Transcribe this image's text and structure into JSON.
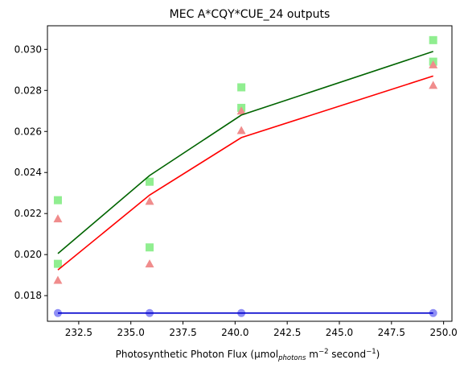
{
  "chart_data": {
    "type": "scatter",
    "title": "MEC A*CQY*CUE_24 outputs",
    "xlabel": {
      "prefix": "Photosynthetic Photon Flux (μmol",
      "sub": "photons",
      "mid1": " m",
      "sup1": "−2",
      "mid2": " second",
      "sup2": "−1",
      "suffix": ")"
    },
    "ylabel": "",
    "xlim": [
      231.0,
      250.4
    ],
    "ylim": [
      0.01675,
      0.03115
    ],
    "xticks": [
      232.5,
      235.0,
      237.5,
      240.0,
      242.5,
      245.0,
      247.5,
      250.0
    ],
    "xtick_labels": [
      "232.5",
      "235.0",
      "237.5",
      "240.0",
      "242.5",
      "245.0",
      "247.5",
      "250.0"
    ],
    "yticks": [
      0.018,
      0.02,
      0.022,
      0.024,
      0.026,
      0.028,
      0.03
    ],
    "ytick_labels": [
      "0.018",
      "0.020",
      "0.022",
      "0.024",
      "0.026",
      "0.028",
      "0.030"
    ],
    "grid": false,
    "legend": "none",
    "series": [
      {
        "kind": "scatter",
        "marker": "square",
        "color": "#90ee90",
        "points": [
          [
            231.5,
            0.02265
          ],
          [
            231.5,
            0.01955
          ],
          [
            235.9,
            0.02355
          ],
          [
            235.9,
            0.02035
          ],
          [
            240.3,
            0.02815
          ],
          [
            240.3,
            0.02715
          ],
          [
            249.5,
            0.03045
          ],
          [
            249.5,
            0.0294
          ]
        ]
      },
      {
        "kind": "scatter",
        "marker": "triangle",
        "color": "#f08c8c",
        "points": [
          [
            231.5,
            0.02175
          ],
          [
            231.5,
            0.01875
          ],
          [
            235.9,
            0.0226
          ],
          [
            235.9,
            0.01955
          ],
          [
            240.3,
            0.027
          ],
          [
            240.3,
            0.02605
          ],
          [
            249.5,
            0.02925
          ],
          [
            249.5,
            0.02825
          ]
        ]
      },
      {
        "kind": "scatter",
        "marker": "circle",
        "color": "#8f8ff5",
        "points": [
          [
            231.5,
            0.01715
          ],
          [
            235.9,
            0.01715
          ],
          [
            240.3,
            0.01715
          ],
          [
            249.5,
            0.01715
          ]
        ]
      },
      {
        "kind": "line",
        "color": "#006400",
        "points": [
          [
            231.5,
            0.02005
          ],
          [
            235.9,
            0.02385
          ],
          [
            240.3,
            0.0268
          ],
          [
            249.5,
            0.0299
          ]
        ]
      },
      {
        "kind": "line",
        "color": "#ff0000",
        "points": [
          [
            231.5,
            0.01925
          ],
          [
            235.9,
            0.0229
          ],
          [
            240.3,
            0.0257
          ],
          [
            249.5,
            0.0287
          ]
        ]
      },
      {
        "kind": "line",
        "color": "#0000cd",
        "points": [
          [
            231.5,
            0.01715
          ],
          [
            235.9,
            0.01715
          ],
          [
            240.3,
            0.01715
          ],
          [
            249.5,
            0.01715
          ]
        ]
      }
    ]
  }
}
